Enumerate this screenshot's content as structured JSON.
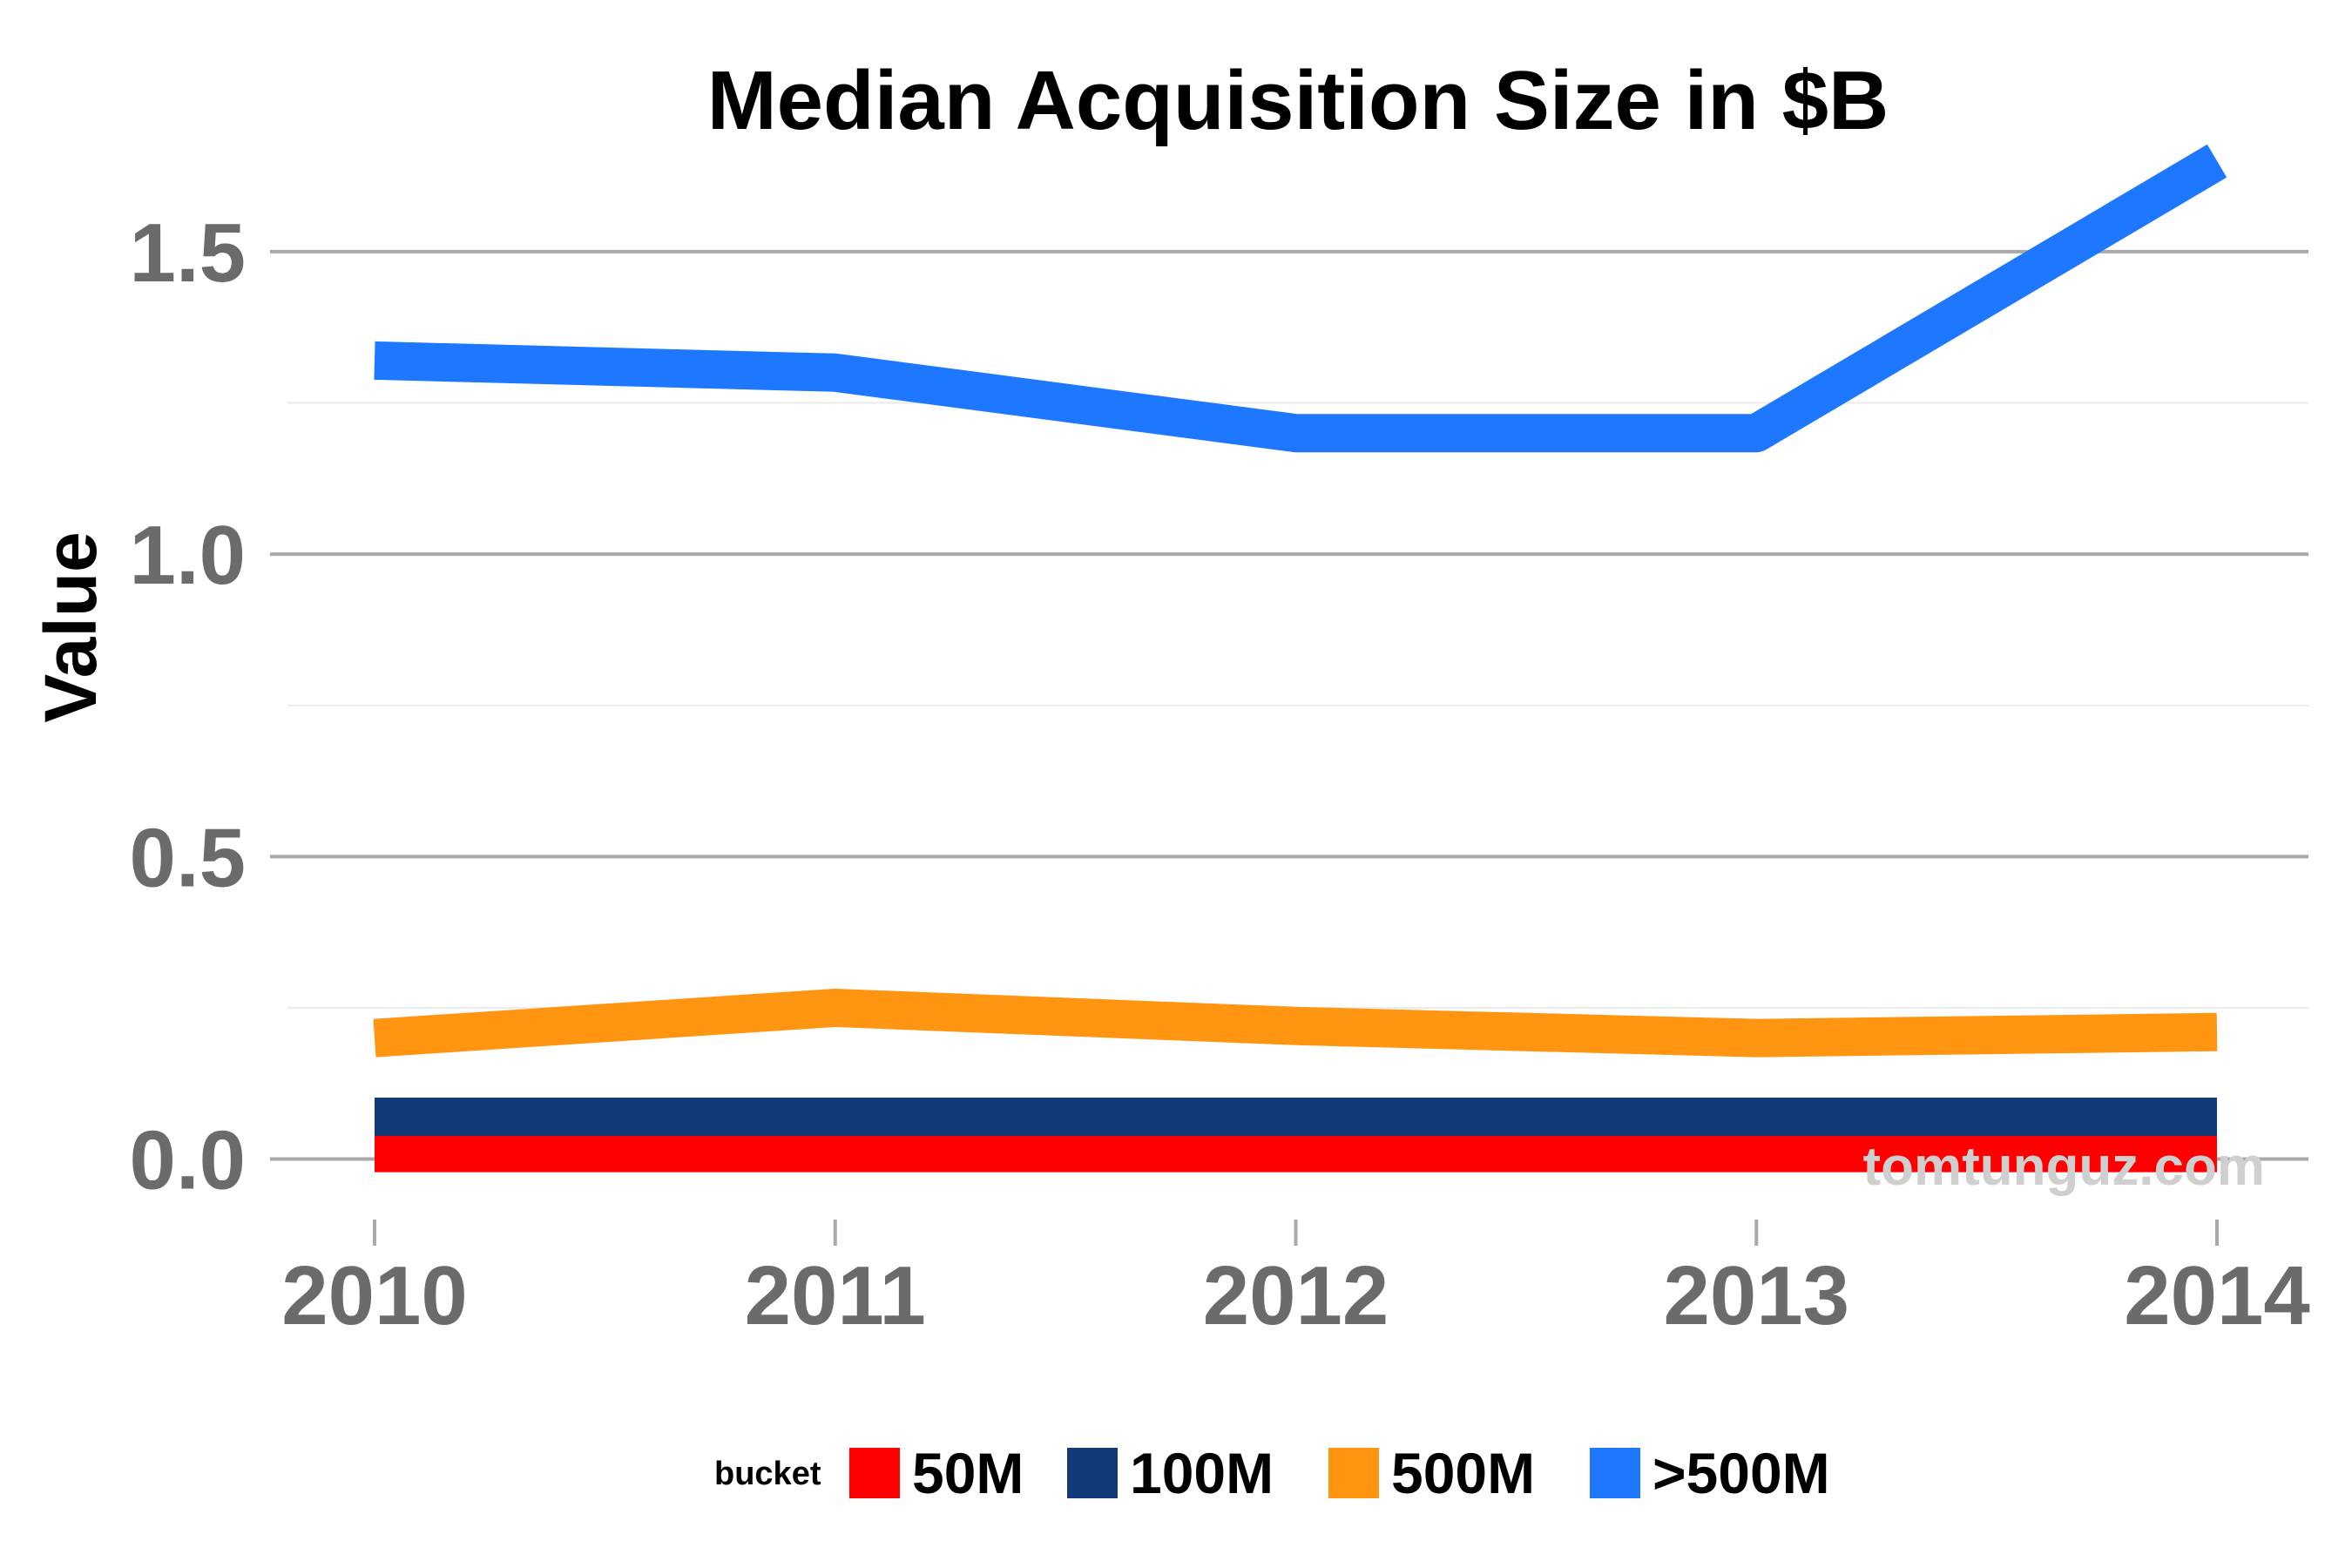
{
  "chart_data": {
    "type": "line",
    "title": "Median Acquisition Size in $B",
    "xlabel": "",
    "ylabel": "Value",
    "x": [
      "2010",
      "2011",
      "2012",
      "2013",
      "2014"
    ],
    "ylim": [
      -0.1,
      1.7
    ],
    "yticks": [
      "0.0",
      "0.5",
      "1.0",
      "1.5"
    ],
    "grid": true,
    "legend": {
      "title": "bucket",
      "placement": "bottom"
    },
    "series": [
      {
        "name": "50M",
        "color": "#ff0000",
        "values": [
          0.01,
          0.01,
          0.01,
          0.01,
          0.01
        ]
      },
      {
        "name": "100M",
        "color": "#123a78",
        "values": [
          0.07,
          0.07,
          0.07,
          0.07,
          0.07
        ]
      },
      {
        "name": "500M",
        "color": "#ff9510",
        "values": [
          0.2,
          0.25,
          0.22,
          0.2,
          0.21
        ]
      },
      {
        "name": ">500M",
        "color": "#1e78ff",
        "values": [
          1.32,
          1.3,
          1.2,
          1.2,
          1.65
        ]
      }
    ],
    "watermark": "tomtunguz.com"
  }
}
